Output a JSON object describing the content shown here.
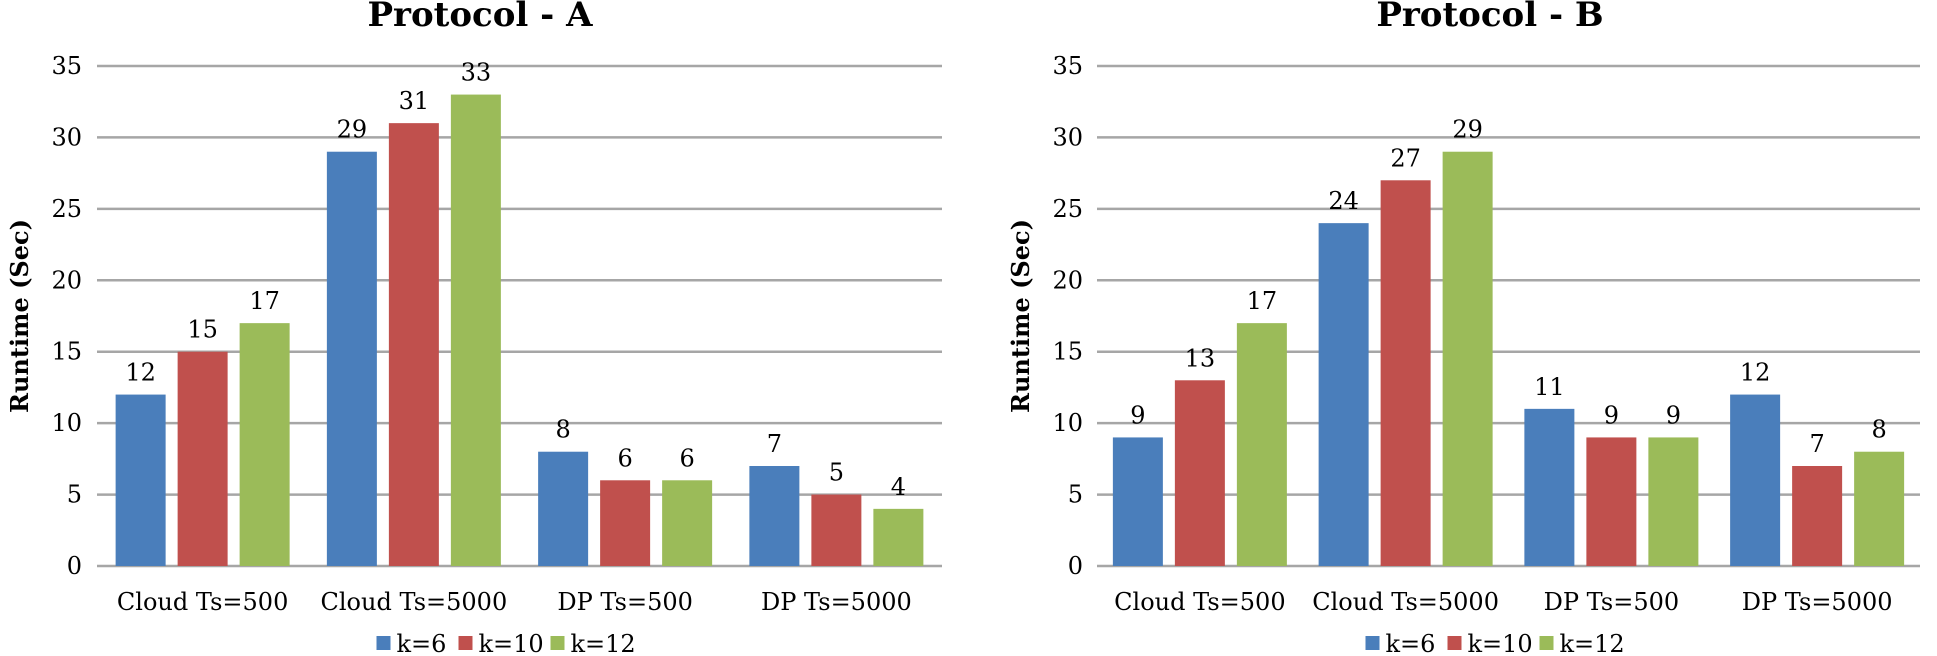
{
  "chart_data": [
    {
      "type": "bar",
      "title": "Protocol - A",
      "xlabel": "",
      "ylabel": "Runtime (Sec)",
      "ylim": [
        0,
        35
      ],
      "yticks": [
        0,
        5,
        10,
        15,
        20,
        25,
        30,
        35
      ],
      "grid": true,
      "legend_position": "bottom",
      "categories": [
        "Cloud Ts=500",
        "Cloud Ts=5000",
        "DP Ts=500",
        "DP Ts=5000"
      ],
      "series": [
        {
          "name": "k=6",
          "color": "#4A7EBB",
          "values": [
            12,
            29,
            8,
            7
          ]
        },
        {
          "name": "k=10",
          "color": "#C0504D",
          "values": [
            15,
            31,
            6,
            5
          ]
        },
        {
          "name": "k=12",
          "color": "#9BBB59",
          "values": [
            17,
            33,
            6,
            4
          ]
        }
      ]
    },
    {
      "type": "bar",
      "title": "Protocol - B",
      "xlabel": "",
      "ylabel": "Runtime (Sec)",
      "ylim": [
        0,
        35
      ],
      "yticks": [
        0,
        5,
        10,
        15,
        20,
        25,
        30,
        35
      ],
      "grid": true,
      "legend_position": "bottom",
      "categories": [
        "Cloud Ts=500",
        "Cloud Ts=5000",
        "DP Ts=500",
        "DP Ts=5000"
      ],
      "series": [
        {
          "name": "k=6",
          "color": "#4A7EBB",
          "values": [
            9,
            24,
            11,
            12
          ]
        },
        {
          "name": "k=10",
          "color": "#C0504D",
          "values": [
            13,
            27,
            9,
            7
          ]
        },
        {
          "name": "k=12",
          "color": "#9BBB59",
          "values": [
            17,
            29,
            9,
            8
          ]
        }
      ]
    }
  ],
  "colors": {
    "gridline": "#A6A6A6",
    "axis": "#A6A6A6"
  }
}
